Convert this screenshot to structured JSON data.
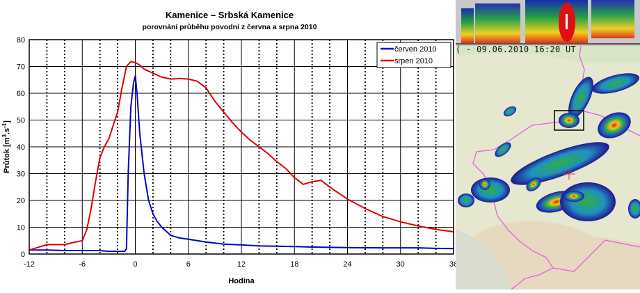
{
  "chart_data": {
    "type": "line",
    "title": "Kamenice – Srbská Kamenice",
    "subtitle": "porovnání průběhu povodní z června a srpna 2010",
    "xlabel": "Hodina",
    "ylabel": "Průtok [m³.s⁻¹]",
    "ylabel_parts": {
      "main": "Průtok [m",
      "sup1": "3",
      "mid": ".s",
      "sup2": "-1",
      "end": "]"
    },
    "xlim": [
      -12,
      36
    ],
    "ylim": [
      0,
      80
    ],
    "xticks": [
      -12,
      -6,
      0,
      6,
      12,
      18,
      24,
      30,
      36
    ],
    "yticks": [
      0,
      10,
      20,
      30,
      40,
      50,
      60,
      70,
      80
    ],
    "minor_x_step": 2,
    "grid": true,
    "legend_position": "top-right",
    "series": [
      {
        "name": "červen 2010",
        "color": "#0000cc",
        "x": [
          -12,
          -10,
          -8,
          -6,
          -4,
          -3,
          -1.2,
          -1,
          -0.8,
          -0.5,
          -0.2,
          0,
          0.2,
          0.5,
          1,
          1.5,
          2,
          2.5,
          3,
          4,
          5,
          6,
          8,
          10,
          12,
          14,
          16,
          18,
          20,
          22,
          24,
          28,
          32,
          34,
          36
        ],
        "y": [
          1.5,
          1.5,
          1.3,
          1.3,
          1.3,
          1.0,
          1.0,
          2,
          30,
          55,
          64,
          66.5,
          60,
          45,
          30,
          20,
          15,
          12,
          10,
          7,
          6,
          5.5,
          4.5,
          3.7,
          3.4,
          3.0,
          2.9,
          2.8,
          2.6,
          2.5,
          2.4,
          2.3,
          2.3,
          2.1,
          2.0
        ]
      },
      {
        "name": "srpen 2010",
        "color": "#dd0000",
        "x": [
          -12,
          -11,
          -10,
          -8,
          -7,
          -6,
          -5.5,
          -5,
          -4.5,
          -4,
          -3.5,
          -3,
          -2.5,
          -2,
          -1.5,
          -1,
          -0.5,
          0,
          0.5,
          1,
          2,
          3,
          4,
          5,
          6,
          7,
          8,
          9,
          10,
          11,
          12,
          13,
          14,
          15,
          16,
          17,
          18,
          19,
          20,
          21,
          22,
          24,
          26,
          28,
          30,
          32,
          34,
          36
        ],
        "y": [
          1.5,
          2.5,
          3.5,
          3.5,
          4.3,
          5,
          9,
          17,
          27,
          36,
          40,
          43,
          48,
          53,
          62,
          70,
          71.8,
          71.5,
          70.5,
          69,
          67.5,
          66,
          65.3,
          65.5,
          65.3,
          64.5,
          62,
          57,
          53,
          49,
          45.5,
          42.5,
          40,
          37.5,
          34.5,
          32,
          28.5,
          26,
          27,
          27.5,
          25,
          20.5,
          17,
          14,
          12,
          10.5,
          9.2,
          8.3
        ]
      }
    ]
  },
  "radar": {
    "timestamp": "( - 09.06.2010 16:20 UT"
  }
}
